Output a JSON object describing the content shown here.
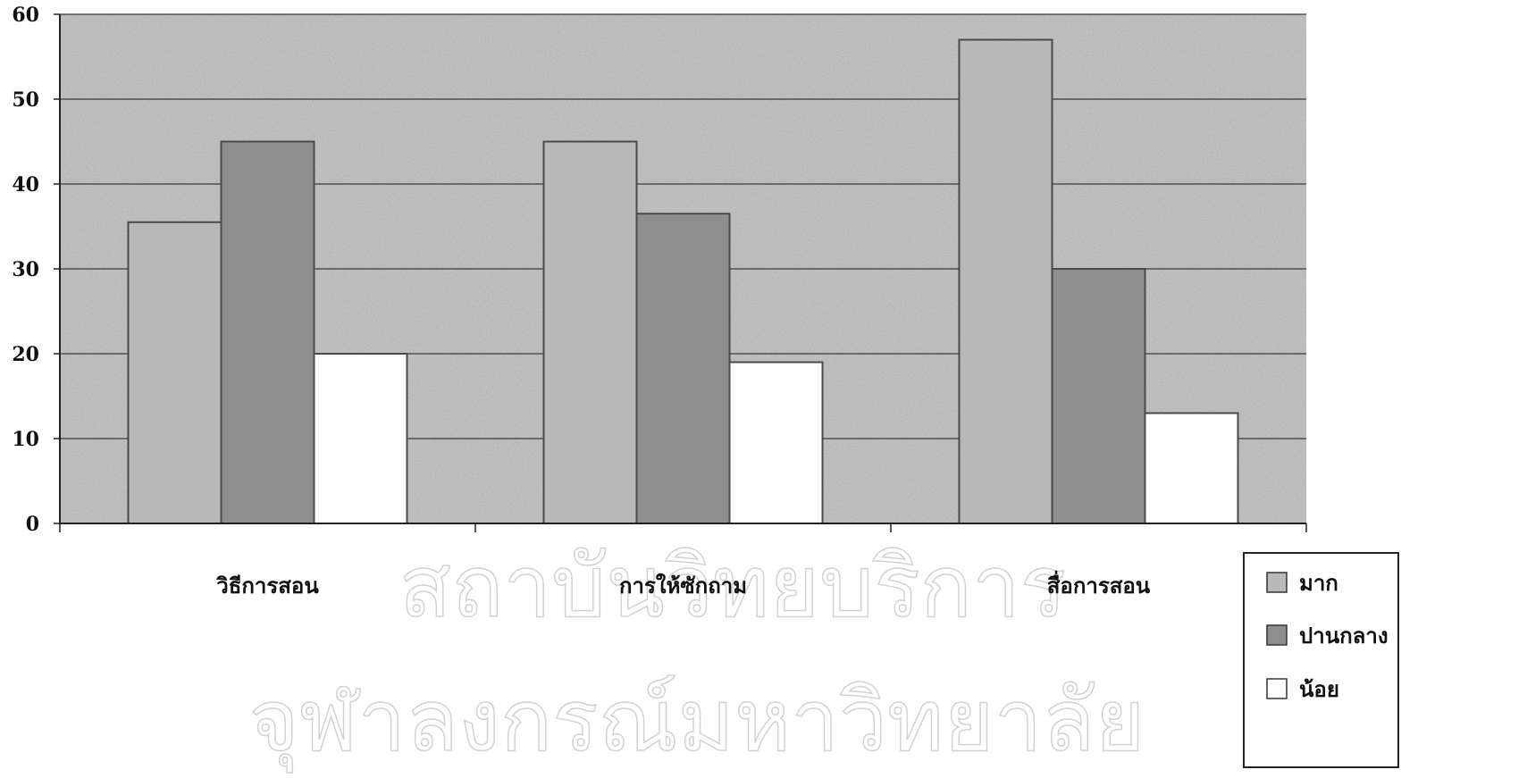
{
  "chart_data": {
    "type": "bar",
    "categories": [
      "วิธีการสอน",
      "การให้ซักถาม",
      "สื่อการสอน"
    ],
    "series": [
      {
        "name": "มาก",
        "values": [
          35.5,
          45,
          57
        ],
        "color": "#b9b9b9"
      },
      {
        "name": "ปานกลาง",
        "values": [
          45,
          36.5,
          30
        ],
        "color": "#8e8e8e"
      },
      {
        "name": "น้อย",
        "values": [
          20,
          19,
          13
        ],
        "color": "#ffffff"
      }
    ],
    "ylim": [
      0,
      60
    ],
    "yticks": [
      "0",
      "10",
      "20",
      "30",
      "40",
      "50",
      "60"
    ],
    "grid": true,
    "legend_position": "bottom-right"
  },
  "watermark": {
    "line1": "สถาบันวิทยบริการ",
    "line2": "จุฬาลงกรณ์มหาวิทยาลัย"
  }
}
